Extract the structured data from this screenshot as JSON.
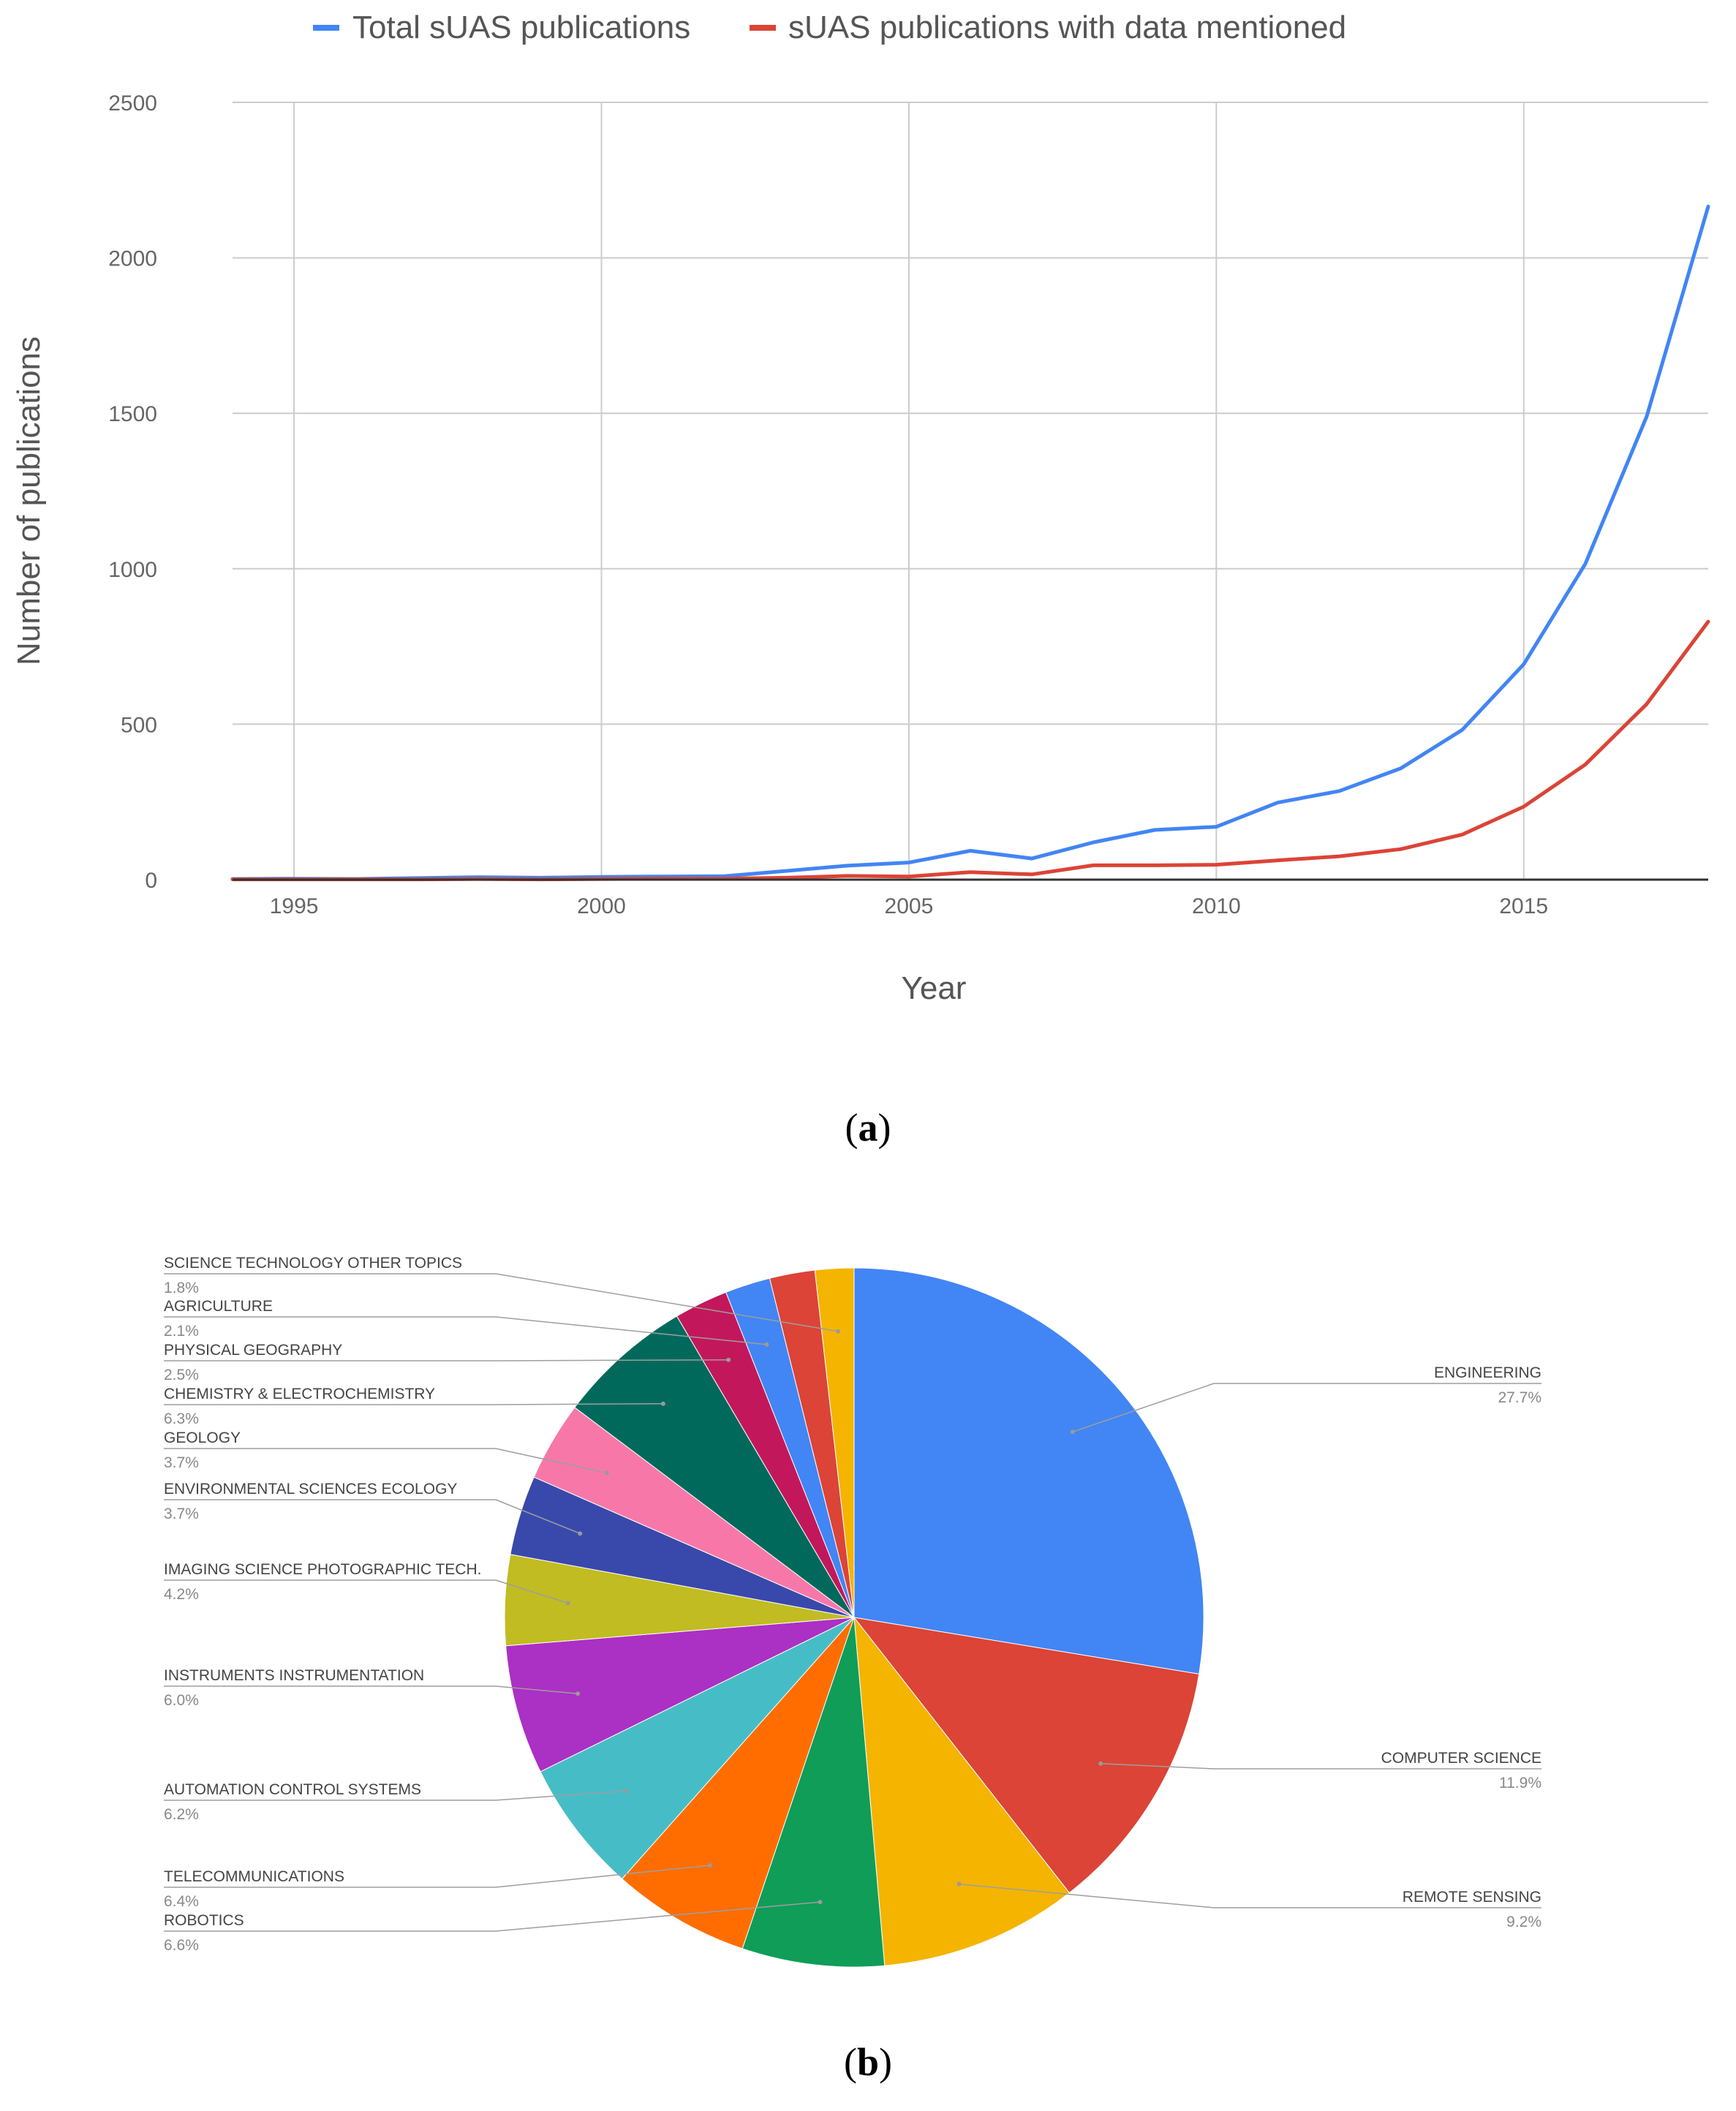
{
  "captions": {
    "a": "a",
    "b": "b"
  },
  "colors": {
    "total": "#4285F4",
    "data_mentioned": "#DB4437",
    "grid": "#CCCCCC",
    "axis": "#333333"
  },
  "chart_data": [
    {
      "type": "line",
      "title": "",
      "xlabel": "Year",
      "ylabel": "Number of publications",
      "xlim": [
        1994,
        2018
      ],
      "ylim": [
        0,
        2500
      ],
      "x_ticks": [
        1995,
        2000,
        2005,
        2010,
        2015
      ],
      "y_ticks": [
        0,
        500,
        1000,
        1500,
        2000,
        2500
      ],
      "grid": true,
      "legend_position": "top",
      "x": [
        1994,
        1995,
        1996,
        1997,
        1998,
        1999,
        2000,
        2001,
        2002,
        2003,
        2004,
        2005,
        2006,
        2007,
        2008,
        2009,
        2010,
        2011,
        2012,
        2013,
        2014,
        2015,
        2016,
        2017,
        2018
      ],
      "series": [
        {
          "name": "Total sUAS publications",
          "color": "#4285F4",
          "values": [
            2,
            3,
            2,
            5,
            8,
            6,
            9,
            10,
            11,
            28,
            45,
            55,
            93,
            68,
            120,
            160,
            170,
            248,
            285,
            358,
            482,
            693,
            1015,
            1490,
            2165
          ]
        },
        {
          "name": "sUAS publications with data mentioned",
          "color": "#DB4437",
          "values": [
            1,
            1,
            1,
            1,
            2,
            1,
            2,
            3,
            3,
            6,
            12,
            10,
            24,
            17,
            46,
            46,
            48,
            62,
            75,
            98,
            145,
            235,
            370,
            565,
            830
          ]
        }
      ]
    },
    {
      "type": "pie",
      "title": "",
      "slices": [
        {
          "label": "ENGINEERING",
          "value": 27.7,
          "pct": "27.7%",
          "color": "#4285F4"
        },
        {
          "label": "COMPUTER SCIENCE",
          "value": 11.9,
          "pct": "11.9%",
          "color": "#DB4437"
        },
        {
          "label": "REMOTE SENSING",
          "value": 9.2,
          "pct": "9.2%",
          "color": "#F4B400"
        },
        {
          "label": "ROBOTICS",
          "value": 6.6,
          "pct": "6.6%",
          "color": "#0F9D58"
        },
        {
          "label": "TELECOMMUNICATIONS",
          "value": 6.4,
          "pct": "6.4%",
          "color": "#FF6D00"
        },
        {
          "label": "AUTOMATION CONTROL SYSTEMS",
          "value": 6.2,
          "pct": "6.2%",
          "color": "#46BDC6"
        },
        {
          "label": "INSTRUMENTS INSTRUMENTATION",
          "value": 6.0,
          "pct": "6.0%",
          "color": "#AB30C4"
        },
        {
          "label": "IMAGING SCIENCE PHOTOGRAPHIC TECH.",
          "value": 4.2,
          "pct": "4.2%",
          "color": "#C0BC22"
        },
        {
          "label": "ENVIRONMENTAL SCIENCES ECOLOGY",
          "value": 3.7,
          "pct": "3.7%",
          "color": "#3949AB"
        },
        {
          "label": "GEOLOGY",
          "value": 3.7,
          "pct": "3.7%",
          "color": "#F778A8"
        },
        {
          "label": "CHEMISTRY & ELECTROCHEMISTRY",
          "value": 6.3,
          "pct": "6.3%",
          "color": "#00695C"
        },
        {
          "label": "PHYSICAL GEOGRAPHY",
          "value": 2.5,
          "pct": "2.5%",
          "color": "#C2185B"
        },
        {
          "label": "AGRICULTURE",
          "value": 2.1,
          "pct": "2.1%",
          "color": "#4285F4"
        },
        {
          "label": "",
          "value": 2.1,
          "pct": "",
          "color": "#DB4437"
        },
        {
          "label": "SCIENCE TECHNOLOGY OTHER TOPICS",
          "value": 1.8,
          "pct": "1.8%",
          "color": "#F4B400"
        }
      ]
    }
  ]
}
